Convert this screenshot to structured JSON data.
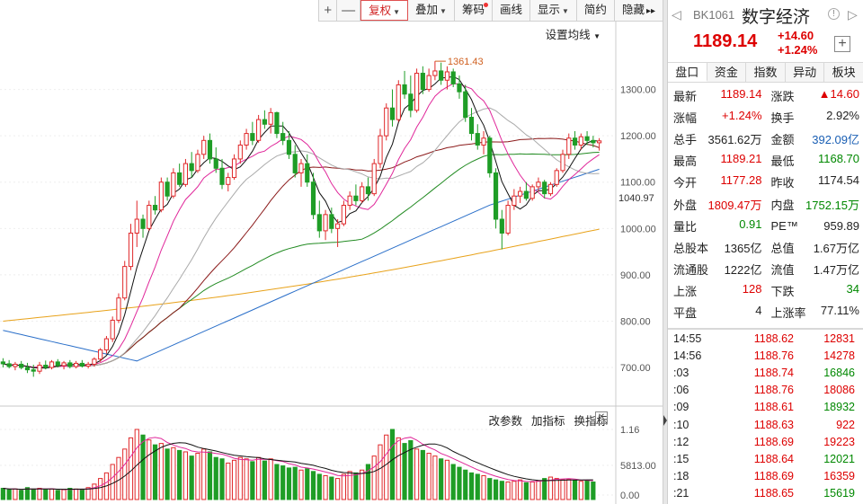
{
  "toolbar": {
    "items": [
      "+",
      "—",
      "复权",
      "叠加",
      "筹码",
      "画线",
      "显示",
      "简约",
      "隐藏",
      "▸▸"
    ]
  },
  "chart": {
    "ma_setting": "设置均线",
    "y_ticks": [
      "1300.00",
      "1200.00",
      "1100.00",
      "1000.00",
      "900.00",
      "800.00",
      "700.00"
    ],
    "last_price_tag": "1040.97",
    "peak_label": "1361.43",
    "volume_ticks": [
      "1.16",
      "5813.00",
      "0.00"
    ],
    "volume_tools": [
      "改参数",
      "加指标",
      "换指标"
    ],
    "close_glyph": "✕"
  },
  "colors": {
    "up": "#e0282a",
    "down": "#1e9d26",
    "ma5": "#111111",
    "ma10": "#e0279a",
    "ma20": "#aaaaaa",
    "ma30": "#8b1a1a",
    "ma60": "#228b22",
    "ma120": "#2a6fc9",
    "ma250": "#e8a21a"
  },
  "chart_data": {
    "type": "candlestick",
    "ylim": [
      640,
      1400
    ],
    "candles": [
      {
        "o": 712,
        "h": 720,
        "l": 700,
        "c": 708
      },
      {
        "o": 708,
        "h": 716,
        "l": 698,
        "c": 702
      },
      {
        "o": 702,
        "h": 712,
        "l": 694,
        "c": 707
      },
      {
        "o": 707,
        "h": 714,
        "l": 696,
        "c": 700
      },
      {
        "o": 700,
        "h": 710,
        "l": 688,
        "c": 695
      },
      {
        "o": 695,
        "h": 706,
        "l": 680,
        "c": 692
      },
      {
        "o": 692,
        "h": 712,
        "l": 686,
        "c": 705
      },
      {
        "o": 705,
        "h": 715,
        "l": 696,
        "c": 700
      },
      {
        "o": 700,
        "h": 716,
        "l": 696,
        "c": 712
      },
      {
        "o": 712,
        "h": 718,
        "l": 700,
        "c": 704
      },
      {
        "o": 704,
        "h": 714,
        "l": 696,
        "c": 710
      },
      {
        "o": 710,
        "h": 716,
        "l": 698,
        "c": 702
      },
      {
        "o": 702,
        "h": 714,
        "l": 698,
        "c": 709
      },
      {
        "o": 709,
        "h": 716,
        "l": 700,
        "c": 703
      },
      {
        "o": 703,
        "h": 712,
        "l": 698,
        "c": 707
      },
      {
        "o": 707,
        "h": 722,
        "l": 702,
        "c": 718
      },
      {
        "o": 718,
        "h": 742,
        "l": 712,
        "c": 738
      },
      {
        "o": 738,
        "h": 768,
        "l": 730,
        "c": 762
      },
      {
        "o": 762,
        "h": 810,
        "l": 755,
        "c": 802
      },
      {
        "o": 802,
        "h": 860,
        "l": 796,
        "c": 850
      },
      {
        "o": 850,
        "h": 930,
        "l": 845,
        "c": 918
      },
      {
        "o": 918,
        "h": 1010,
        "l": 910,
        "c": 990
      },
      {
        "o": 990,
        "h": 1060,
        "l": 960,
        "c": 1020
      },
      {
        "o": 1020,
        "h": 1030,
        "l": 980,
        "c": 1000
      },
      {
        "o": 1000,
        "h": 1060,
        "l": 995,
        "c": 1050
      },
      {
        "o": 1050,
        "h": 1070,
        "l": 1030,
        "c": 1040
      },
      {
        "o": 1040,
        "h": 1110,
        "l": 1035,
        "c": 1100
      },
      {
        "o": 1100,
        "h": 1110,
        "l": 1060,
        "c": 1070
      },
      {
        "o": 1070,
        "h": 1130,
        "l": 1065,
        "c": 1120
      },
      {
        "o": 1120,
        "h": 1140,
        "l": 1090,
        "c": 1095
      },
      {
        "o": 1095,
        "h": 1150,
        "l": 1090,
        "c": 1140
      },
      {
        "o": 1140,
        "h": 1165,
        "l": 1110,
        "c": 1125
      },
      {
        "o": 1125,
        "h": 1170,
        "l": 1120,
        "c": 1160
      },
      {
        "o": 1160,
        "h": 1200,
        "l": 1150,
        "c": 1190
      },
      {
        "o": 1190,
        "h": 1205,
        "l": 1140,
        "c": 1150
      },
      {
        "o": 1150,
        "h": 1175,
        "l": 1120,
        "c": 1130
      },
      {
        "o": 1130,
        "h": 1150,
        "l": 1085,
        "c": 1095
      },
      {
        "o": 1095,
        "h": 1120,
        "l": 1080,
        "c": 1110
      },
      {
        "o": 1110,
        "h": 1160,
        "l": 1105,
        "c": 1150
      },
      {
        "o": 1150,
        "h": 1190,
        "l": 1140,
        "c": 1180
      },
      {
        "o": 1180,
        "h": 1215,
        "l": 1170,
        "c": 1205
      },
      {
        "o": 1205,
        "h": 1230,
        "l": 1180,
        "c": 1190
      },
      {
        "o": 1190,
        "h": 1245,
        "l": 1185,
        "c": 1235
      },
      {
        "o": 1235,
        "h": 1255,
        "l": 1215,
        "c": 1225
      },
      {
        "o": 1225,
        "h": 1260,
        "l": 1205,
        "c": 1250
      },
      {
        "o": 1250,
        "h": 1252,
        "l": 1195,
        "c": 1205
      },
      {
        "o": 1205,
        "h": 1230,
        "l": 1180,
        "c": 1190
      },
      {
        "o": 1190,
        "h": 1210,
        "l": 1150,
        "c": 1160
      },
      {
        "o": 1160,
        "h": 1180,
        "l": 1110,
        "c": 1120
      },
      {
        "o": 1120,
        "h": 1150,
        "l": 1090,
        "c": 1140
      },
      {
        "o": 1140,
        "h": 1160,
        "l": 1090,
        "c": 1100
      },
      {
        "o": 1100,
        "h": 1120,
        "l": 1020,
        "c": 1030
      },
      {
        "o": 1030,
        "h": 1060,
        "l": 980,
        "c": 995
      },
      {
        "o": 995,
        "h": 1040,
        "l": 975,
        "c": 1030
      },
      {
        "o": 1030,
        "h": 1045,
        "l": 990,
        "c": 1000
      },
      {
        "o": 1000,
        "h": 1020,
        "l": 960,
        "c": 1010
      },
      {
        "o": 1010,
        "h": 1060,
        "l": 1005,
        "c": 1050
      },
      {
        "o": 1050,
        "h": 1080,
        "l": 1040,
        "c": 1070
      },
      {
        "o": 1070,
        "h": 1095,
        "l": 1050,
        "c": 1060
      },
      {
        "o": 1060,
        "h": 1100,
        "l": 1055,
        "c": 1090
      },
      {
        "o": 1090,
        "h": 1110,
        "l": 1060,
        "c": 1075
      },
      {
        "o": 1075,
        "h": 1150,
        "l": 1070,
        "c": 1140
      },
      {
        "o": 1140,
        "h": 1215,
        "l": 1130,
        "c": 1200
      },
      {
        "o": 1200,
        "h": 1270,
        "l": 1190,
        "c": 1260
      },
      {
        "o": 1260,
        "h": 1300,
        "l": 1220,
        "c": 1235
      },
      {
        "o": 1235,
        "h": 1320,
        "l": 1230,
        "c": 1310
      },
      {
        "o": 1310,
        "h": 1340,
        "l": 1280,
        "c": 1290
      },
      {
        "o": 1290,
        "h": 1330,
        "l": 1240,
        "c": 1255
      },
      {
        "o": 1255,
        "h": 1345,
        "l": 1250,
        "c": 1335
      },
      {
        "o": 1335,
        "h": 1350,
        "l": 1290,
        "c": 1300
      },
      {
        "o": 1300,
        "h": 1345,
        "l": 1295,
        "c": 1330
      },
      {
        "o": 1330,
        "h": 1361,
        "l": 1320,
        "c": 1340
      },
      {
        "o": 1340,
        "h": 1358,
        "l": 1310,
        "c": 1320
      },
      {
        "o": 1320,
        "h": 1350,
        "l": 1300,
        "c": 1338
      },
      {
        "o": 1338,
        "h": 1345,
        "l": 1305,
        "c": 1312
      },
      {
        "o": 1312,
        "h": 1330,
        "l": 1280,
        "c": 1295
      },
      {
        "o": 1295,
        "h": 1310,
        "l": 1230,
        "c": 1240
      },
      {
        "o": 1240,
        "h": 1260,
        "l": 1190,
        "c": 1205
      },
      {
        "o": 1205,
        "h": 1225,
        "l": 1170,
        "c": 1180
      },
      {
        "o": 1180,
        "h": 1210,
        "l": 1160,
        "c": 1195
      },
      {
        "o": 1195,
        "h": 1200,
        "l": 1110,
        "c": 1120
      },
      {
        "o": 1120,
        "h": 1130,
        "l": 1000,
        "c": 1020
      },
      {
        "o": 1020,
        "h": 1040,
        "l": 955,
        "c": 990
      },
      {
        "o": 990,
        "h": 1060,
        "l": 985,
        "c": 1050
      },
      {
        "o": 1050,
        "h": 1085,
        "l": 1040,
        "c": 1070
      },
      {
        "o": 1070,
        "h": 1090,
        "l": 1055,
        "c": 1080
      },
      {
        "o": 1080,
        "h": 1100,
        "l": 1060,
        "c": 1065
      },
      {
        "o": 1065,
        "h": 1095,
        "l": 1060,
        "c": 1090
      },
      {
        "o": 1090,
        "h": 1110,
        "l": 1080,
        "c": 1100
      },
      {
        "o": 1100,
        "h": 1105,
        "l": 1065,
        "c": 1075
      },
      {
        "o": 1075,
        "h": 1100,
        "l": 1070,
        "c": 1095
      },
      {
        "o": 1095,
        "h": 1130,
        "l": 1090,
        "c": 1125
      },
      {
        "o": 1125,
        "h": 1170,
        "l": 1120,
        "c": 1160
      },
      {
        "o": 1160,
        "h": 1205,
        "l": 1150,
        "c": 1195
      },
      {
        "o": 1195,
        "h": 1210,
        "l": 1170,
        "c": 1180
      },
      {
        "o": 1180,
        "h": 1205,
        "l": 1170,
        "c": 1198
      },
      {
        "o": 1198,
        "h": 1210,
        "l": 1180,
        "c": 1190
      },
      {
        "o": 1190,
        "h": 1200,
        "l": 1175,
        "c": 1185
      },
      {
        "o": 1185,
        "h": 1195,
        "l": 1168,
        "c": 1189
      }
    ],
    "volume": [
      0.16,
      0.14,
      0.15,
      0.13,
      0.17,
      0.15,
      0.16,
      0.14,
      0.15,
      0.13,
      0.14,
      0.16,
      0.15,
      0.14,
      0.17,
      0.22,
      0.3,
      0.38,
      0.5,
      0.6,
      0.72,
      0.88,
      1.0,
      0.92,
      0.85,
      0.78,
      0.8,
      0.72,
      0.74,
      0.7,
      0.68,
      0.62,
      0.66,
      0.72,
      0.68,
      0.6,
      0.58,
      0.52,
      0.56,
      0.6,
      0.58,
      0.54,
      0.6,
      0.55,
      0.58,
      0.5,
      0.48,
      0.45,
      0.46,
      0.42,
      0.44,
      0.4,
      0.36,
      0.34,
      0.32,
      0.3,
      0.36,
      0.4,
      0.38,
      0.42,
      0.5,
      0.62,
      0.78,
      0.92,
      1.0,
      0.88,
      0.8,
      0.84,
      0.72,
      0.7,
      0.66,
      0.62,
      0.58,
      0.56,
      0.5,
      0.46,
      0.42,
      0.38,
      0.36,
      0.34,
      0.3,
      0.28,
      0.26,
      0.25,
      0.26,
      0.28,
      0.24,
      0.25,
      0.27,
      0.3,
      0.32,
      0.3,
      0.28,
      0.29,
      0.27,
      0.26,
      0.27,
      0.25
    ]
  },
  "panel": {
    "prev": "◁",
    "code": "BK1061",
    "name": "数字经济",
    "info": "!",
    "next": "▷",
    "price": "1189.14",
    "change": "+14.60",
    "change_pct": "+1.24%",
    "add": "+",
    "tabs": [
      "盘口",
      "资金",
      "指数",
      "异动",
      "板块"
    ],
    "stats": [
      [
        {
          "l": "最新",
          "v": "1189.14",
          "c": "red"
        },
        {
          "l": "涨跌",
          "v": "▲14.60",
          "c": "red"
        }
      ],
      [
        {
          "l": "涨幅",
          "v": "+1.24%",
          "c": "red"
        },
        {
          "l": "换手",
          "v": "2.92%",
          "c": ""
        }
      ],
      [
        {
          "l": "总手",
          "v": "3561.62万",
          "c": ""
        },
        {
          "l": "金额",
          "v": "392.09亿",
          "c": "blue"
        }
      ],
      [
        {
          "l": "最高",
          "v": "1189.21",
          "c": "red"
        },
        {
          "l": "最低",
          "v": "1168.70",
          "c": "green"
        }
      ],
      [
        {
          "l": "今开",
          "v": "1177.28",
          "c": "red"
        },
        {
          "l": "昨收",
          "v": "1174.54",
          "c": ""
        }
      ],
      [
        {
          "l": "外盘",
          "v": "1809.47万",
          "c": "red"
        },
        {
          "l": "内盘",
          "v": "1752.15万",
          "c": "green"
        }
      ],
      [
        {
          "l": "量比",
          "v": "0.91",
          "c": "green"
        },
        {
          "l": "PE™",
          "v": "959.89",
          "c": ""
        }
      ],
      [
        {
          "l": "总股本",
          "v": "1365亿",
          "c": ""
        },
        {
          "l": "总值",
          "v": "1.67万亿",
          "c": ""
        }
      ],
      [
        {
          "l": "流通股",
          "v": "1222亿",
          "c": ""
        },
        {
          "l": "流值",
          "v": "1.47万亿",
          "c": ""
        }
      ],
      [
        {
          "l": "上涨",
          "v": "128",
          "c": "red"
        },
        {
          "l": "下跌",
          "v": "34",
          "c": "green"
        }
      ],
      [
        {
          "l": "平盘",
          "v": "4",
          "c": ""
        },
        {
          "l": "上涨率",
          "v": "77.11%",
          "c": ""
        }
      ]
    ],
    "trades": [
      {
        "t": "14:55",
        "p": "1188.62",
        "v": "12831",
        "c": "red"
      },
      {
        "t": "14:56",
        "p": "1188.76",
        "v": "14278",
        "c": "red"
      },
      {
        "t": ":03",
        "p": "1188.74",
        "v": "16846",
        "c": "green"
      },
      {
        "t": ":06",
        "p": "1188.76",
        "v": "18086",
        "c": "red"
      },
      {
        "t": ":09",
        "p": "1188.61",
        "v": "18932",
        "c": "green"
      },
      {
        "t": ":10",
        "p": "1188.63",
        "v": "922",
        "c": "red"
      },
      {
        "t": ":12",
        "p": "1188.69",
        "v": "19223",
        "c": "red"
      },
      {
        "t": ":15",
        "p": "1188.64",
        "v": "12021",
        "c": "green"
      },
      {
        "t": ":18",
        "p": "1188.69",
        "v": "16359",
        "c": "red"
      },
      {
        "t": ":21",
        "p": "1188.65",
        "v": "15619",
        "c": "green"
      }
    ]
  }
}
